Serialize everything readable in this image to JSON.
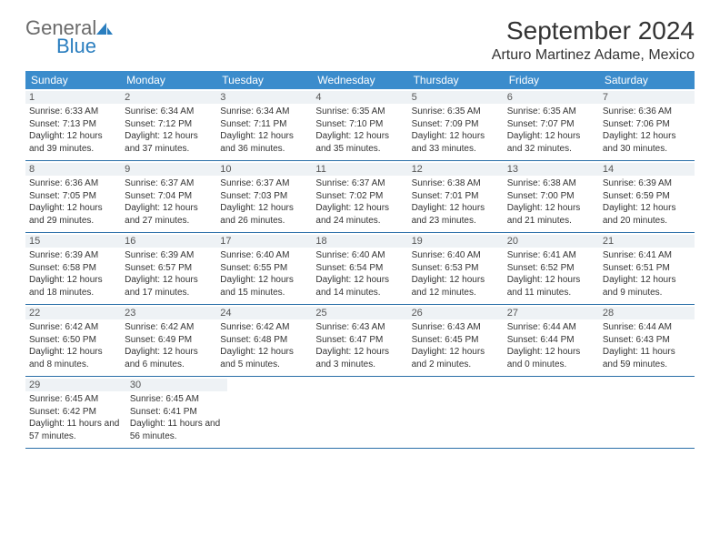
{
  "logo": {
    "part1": "General",
    "part2": "Blue"
  },
  "title": "September 2024",
  "location": "Arturo Martinez Adame, Mexico",
  "colors": {
    "header_bg": "#3b8ccc",
    "header_text": "#ffffff",
    "daynum_bg": "#eef2f5",
    "daynum_text": "#555555",
    "row_border": "#2a6fa8",
    "body_text": "#333333",
    "logo_gray": "#6a6a6a",
    "logo_blue": "#2a7ebf"
  },
  "weekdays": [
    "Sunday",
    "Monday",
    "Tuesday",
    "Wednesday",
    "Thursday",
    "Friday",
    "Saturday"
  ],
  "weeks": [
    [
      {
        "n": "1",
        "sr": "6:33 AM",
        "ss": "7:13 PM",
        "dh": "12",
        "dm": "39"
      },
      {
        "n": "2",
        "sr": "6:34 AM",
        "ss": "7:12 PM",
        "dh": "12",
        "dm": "37"
      },
      {
        "n": "3",
        "sr": "6:34 AM",
        "ss": "7:11 PM",
        "dh": "12",
        "dm": "36"
      },
      {
        "n": "4",
        "sr": "6:35 AM",
        "ss": "7:10 PM",
        "dh": "12",
        "dm": "35"
      },
      {
        "n": "5",
        "sr": "6:35 AM",
        "ss": "7:09 PM",
        "dh": "12",
        "dm": "33"
      },
      {
        "n": "6",
        "sr": "6:35 AM",
        "ss": "7:07 PM",
        "dh": "12",
        "dm": "32"
      },
      {
        "n": "7",
        "sr": "6:36 AM",
        "ss": "7:06 PM",
        "dh": "12",
        "dm": "30"
      }
    ],
    [
      {
        "n": "8",
        "sr": "6:36 AM",
        "ss": "7:05 PM",
        "dh": "12",
        "dm": "29"
      },
      {
        "n": "9",
        "sr": "6:37 AM",
        "ss": "7:04 PM",
        "dh": "12",
        "dm": "27"
      },
      {
        "n": "10",
        "sr": "6:37 AM",
        "ss": "7:03 PM",
        "dh": "12",
        "dm": "26"
      },
      {
        "n": "11",
        "sr": "6:37 AM",
        "ss": "7:02 PM",
        "dh": "12",
        "dm": "24"
      },
      {
        "n": "12",
        "sr": "6:38 AM",
        "ss": "7:01 PM",
        "dh": "12",
        "dm": "23"
      },
      {
        "n": "13",
        "sr": "6:38 AM",
        "ss": "7:00 PM",
        "dh": "12",
        "dm": "21"
      },
      {
        "n": "14",
        "sr": "6:39 AM",
        "ss": "6:59 PM",
        "dh": "12",
        "dm": "20"
      }
    ],
    [
      {
        "n": "15",
        "sr": "6:39 AM",
        "ss": "6:58 PM",
        "dh": "12",
        "dm": "18"
      },
      {
        "n": "16",
        "sr": "6:39 AM",
        "ss": "6:57 PM",
        "dh": "12",
        "dm": "17"
      },
      {
        "n": "17",
        "sr": "6:40 AM",
        "ss": "6:55 PM",
        "dh": "12",
        "dm": "15"
      },
      {
        "n": "18",
        "sr": "6:40 AM",
        "ss": "6:54 PM",
        "dh": "12",
        "dm": "14"
      },
      {
        "n": "19",
        "sr": "6:40 AM",
        "ss": "6:53 PM",
        "dh": "12",
        "dm": "12"
      },
      {
        "n": "20",
        "sr": "6:41 AM",
        "ss": "6:52 PM",
        "dh": "12",
        "dm": "11"
      },
      {
        "n": "21",
        "sr": "6:41 AM",
        "ss": "6:51 PM",
        "dh": "12",
        "dm": "9"
      }
    ],
    [
      {
        "n": "22",
        "sr": "6:42 AM",
        "ss": "6:50 PM",
        "dh": "12",
        "dm": "8"
      },
      {
        "n": "23",
        "sr": "6:42 AM",
        "ss": "6:49 PM",
        "dh": "12",
        "dm": "6"
      },
      {
        "n": "24",
        "sr": "6:42 AM",
        "ss": "6:48 PM",
        "dh": "12",
        "dm": "5"
      },
      {
        "n": "25",
        "sr": "6:43 AM",
        "ss": "6:47 PM",
        "dh": "12",
        "dm": "3"
      },
      {
        "n": "26",
        "sr": "6:43 AM",
        "ss": "6:45 PM",
        "dh": "12",
        "dm": "2"
      },
      {
        "n": "27",
        "sr": "6:44 AM",
        "ss": "6:44 PM",
        "dh": "12",
        "dm": "0"
      },
      {
        "n": "28",
        "sr": "6:44 AM",
        "ss": "6:43 PM",
        "dh": "11",
        "dm": "59"
      }
    ],
    [
      {
        "n": "29",
        "sr": "6:45 AM",
        "ss": "6:42 PM",
        "dh": "11",
        "dm": "57"
      },
      {
        "n": "30",
        "sr": "6:45 AM",
        "ss": "6:41 PM",
        "dh": "11",
        "dm": "56"
      },
      null,
      null,
      null,
      null,
      null
    ]
  ],
  "labels": {
    "sunrise": "Sunrise:",
    "sunset": "Sunset:",
    "daylight": "Daylight:",
    "hours": "hours",
    "and": "and",
    "minutes": "minutes."
  }
}
